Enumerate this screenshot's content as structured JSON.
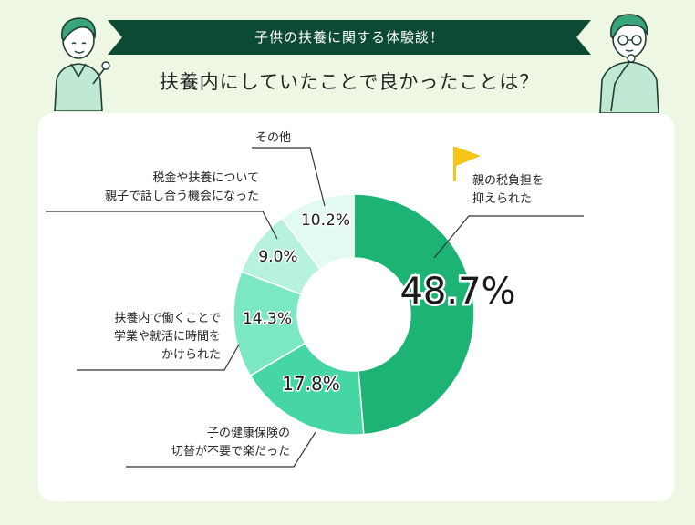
{
  "banner": {
    "title": "子供の扶養に関する体験談！"
  },
  "question": "扶養内にしていたことで良かったことは？",
  "chart_data": {
    "type": "donut",
    "slices": [
      {
        "label": "親の税負担を抑えられた",
        "value": 48.7,
        "value_label": "48.7%",
        "color": "#1db374"
      },
      {
        "label": "子の健康保険の切替が不要で楽だった",
        "value": 17.8,
        "value_label": "17.8%",
        "color": "#45d6a3"
      },
      {
        "label": "扶養内で働くことで学業や就活に時間をかけられた",
        "value": 14.3,
        "value_label": "14.3%",
        "color": "#7ce8c1"
      },
      {
        "label": "税金や扶養について親子で話し合う機会になった",
        "value": 9.0,
        "value_label": "9.0%",
        "color": "#b6f2dc"
      },
      {
        "label": "その他",
        "value": 10.2,
        "value_label": "10.2%",
        "color": "#e2faf0"
      }
    ]
  },
  "labels": {
    "top_slice": [
      "親の税負担を",
      "抑えられた"
    ],
    "second_slice": [
      "子の健康保険の",
      "切替が不要で楽だった"
    ],
    "third_slice": [
      "扶養内で働くことで",
      "学業や就活に時間を",
      "かけられた"
    ],
    "fourth_slice": [
      "税金や扶養について",
      "親子で話し合う機会になった"
    ],
    "fifth_slice": [
      "その他"
    ]
  },
  "colors": {
    "banner": "#0d4a33",
    "flag": "#f5c518",
    "background": "#eef7e4"
  },
  "icons": [
    "flag-icon",
    "person-left-illustration",
    "person-right-illustration"
  ]
}
